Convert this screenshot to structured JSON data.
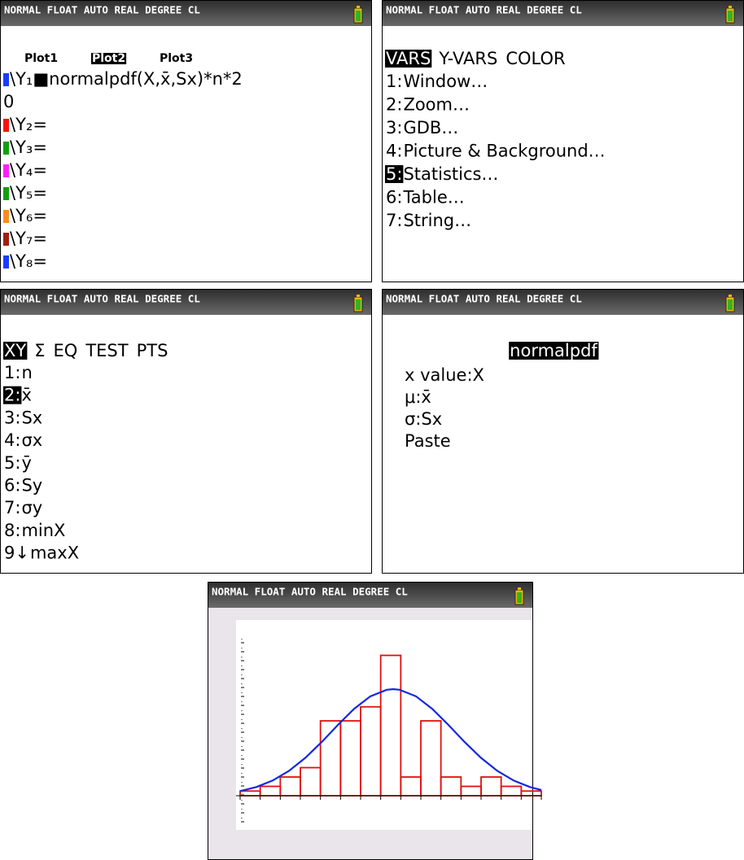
{
  "status_bar": "NORMAL FLOAT AUTO REAL DEGREE CL",
  "screens": [
    {
      "plots": [
        "Plot1",
        "Plot2",
        "Plot3"
      ],
      "selected_plot": 1,
      "lines": [
        {
          "color": "#1a3cff",
          "text": "\\Y₁■normalpdf(X,x̄,Sx)*n*2"
        },
        {
          "text": "0"
        },
        {
          "color": "#ff1010",
          "text": "\\Y₂="
        },
        {
          "color": "#10a010",
          "text": "\\Y₃="
        },
        {
          "color": "#ff20ff",
          "text": "\\Y₄="
        },
        {
          "color": "#10a010",
          "text": "\\Y₅="
        },
        {
          "color": "#ff8c1a",
          "text": "\\Y₆="
        },
        {
          "color": "#a02010",
          "text": "\\Y₇="
        },
        {
          "color": "#1a3cff",
          "text": "\\Y₈="
        }
      ]
    },
    {
      "tabs": [
        "VARS",
        "Y-VARS",
        "COLOR"
      ],
      "selected_tab": 0,
      "items": [
        {
          "key": "1:",
          "label": "Window…"
        },
        {
          "key": "2:",
          "label": "Zoom…"
        },
        {
          "key": "3:",
          "label": "GDB…"
        },
        {
          "key": "4:",
          "label": "Picture & Background…"
        },
        {
          "key": "5:",
          "label": "Statistics…"
        },
        {
          "key": "6:",
          "label": "Table…"
        },
        {
          "key": "7:",
          "label": "String…"
        }
      ],
      "selected_item": 4
    },
    {
      "tabs": [
        "XY",
        "Σ",
        "EQ",
        "TEST",
        "PTS"
      ],
      "selected_tab": 0,
      "items": [
        {
          "key": "1:",
          "label": "n"
        },
        {
          "key": "2:",
          "label": "x̄"
        },
        {
          "key": "3:",
          "label": "Sx"
        },
        {
          "key": "4:",
          "label": "σx"
        },
        {
          "key": "5:",
          "label": "ȳ"
        },
        {
          "key": "6:",
          "label": "Sy"
        },
        {
          "key": "7:",
          "label": "σy"
        },
        {
          "key": "8:",
          "label": "minX"
        },
        {
          "key": "9↓",
          "label": "maxX"
        }
      ],
      "selected_item": 1
    },
    {
      "title": "normalpdf",
      "fields": [
        "x value:X",
        "μ:x̄",
        "σ:Sx",
        "Paste"
      ]
    },
    {
      "histogram": {
        "counts": [
          1,
          2,
          4,
          6,
          16,
          16,
          19,
          30,
          4,
          16,
          4,
          2,
          4,
          2,
          1
        ],
        "color": "#e01010"
      },
      "curve_color": "#1428e0"
    }
  ]
}
